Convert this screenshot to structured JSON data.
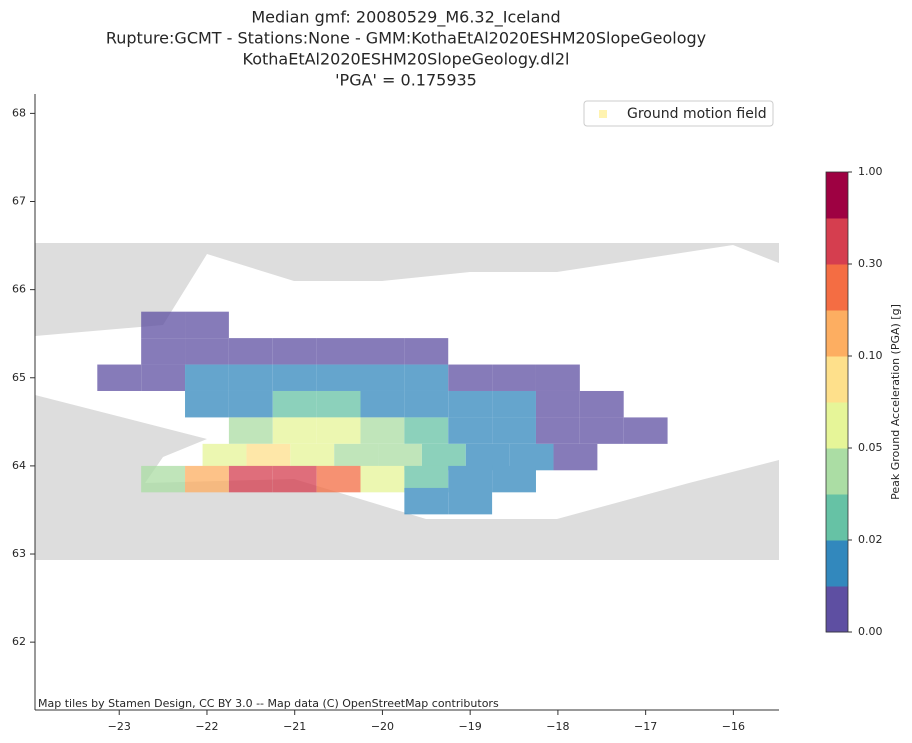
{
  "chart_data": {
    "type": "scatter",
    "title_lines": [
      "Median gmf: 20080529_M6.32_Iceland",
      "Rupture:GCMT -  Stations:None - GMM:KothaEtAl2020ESHM20SlopeGeology",
      "KothaEtAl2020ESHM20SlopeGeology.dl2l",
      "'PGA' = 0.175935"
    ],
    "attribution": "Map tiles by Stamen Design, CC BY 3.0 -- Map data (C) OpenStreetMap contributors",
    "legend_position": "upper right",
    "series": [
      {
        "name": "Ground motion field",
        "color": "#fff3b0",
        "x": [
          -22.5,
          -22.0,
          -22.5,
          -22.0,
          -21.5,
          -21.0,
          -20.5,
          -20.0,
          -19.5,
          -23.0,
          -22.5,
          -22.0,
          -21.5,
          -21.0,
          -20.5,
          -20.0,
          -19.5,
          -19.0,
          -18.5,
          -18.0,
          -22.0,
          -21.5,
          -21.0,
          -20.5,
          -20.0,
          -19.5,
          -19.0,
          -18.5,
          -18.0,
          -17.5,
          -21.5,
          -21.0,
          -20.5,
          -20.0,
          -19.5,
          -19.0,
          -18.5,
          -18.0,
          -17.5,
          -17.0,
          -21.8,
          -21.3,
          -20.8,
          -20.3,
          -19.8,
          -19.3,
          -18.8,
          -18.3,
          -17.8,
          -22.5,
          -22.0,
          -21.5,
          -21.0,
          -20.5,
          -20.0,
          -19.5,
          -19.0,
          -18.5,
          -19.5,
          -19.0
        ],
        "y": [
          65.6,
          65.6,
          65.3,
          65.3,
          65.3,
          65.3,
          65.3,
          65.3,
          65.3,
          65.0,
          65.0,
          65.0,
          65.0,
          65.0,
          65.0,
          65.0,
          65.0,
          65.0,
          65.0,
          65.0,
          64.7,
          64.7,
          64.7,
          64.7,
          64.7,
          64.7,
          64.7,
          64.7,
          64.7,
          64.7,
          64.4,
          64.4,
          64.4,
          64.4,
          64.4,
          64.4,
          64.4,
          64.4,
          64.4,
          64.4,
          64.1,
          64.1,
          64.1,
          64.1,
          64.1,
          64.1,
          64.1,
          64.1,
          64.1,
          63.85,
          63.85,
          63.85,
          63.85,
          63.85,
          63.85,
          63.85,
          63.85,
          63.85,
          63.6,
          63.6
        ],
        "values": [
          0.005,
          0.005,
          0.005,
          0.005,
          0.005,
          0.005,
          0.005,
          0.005,
          0.005,
          0.005,
          0.005,
          0.015,
          0.015,
          0.015,
          0.015,
          0.015,
          0.015,
          0.005,
          0.005,
          0.005,
          0.015,
          0.015,
          0.025,
          0.025,
          0.015,
          0.015,
          0.015,
          0.015,
          0.005,
          0.005,
          0.04,
          0.06,
          0.06,
          0.04,
          0.025,
          0.015,
          0.015,
          0.005,
          0.005,
          0.005,
          0.07,
          0.08,
          0.07,
          0.05,
          0.04,
          0.025,
          0.015,
          0.015,
          0.005,
          0.05,
          0.15,
          0.4,
          0.4,
          0.2,
          0.06,
          0.03,
          0.02,
          0.015,
          0.02,
          0.015
        ]
      }
    ],
    "xlim": [
      -23.96,
      -15.48
    ],
    "xticks": [
      {
        "value": -23,
        "label": "−23"
      },
      {
        "value": -22,
        "label": "−22"
      },
      {
        "value": -21,
        "label": "−21"
      },
      {
        "value": -20,
        "label": "−20"
      },
      {
        "value": -19,
        "label": "−19"
      },
      {
        "value": -18,
        "label": "−18"
      },
      {
        "value": -17,
        "label": "−17"
      },
      {
        "value": -16,
        "label": "−16"
      }
    ],
    "ylim": [
      61.23,
      68.22
    ],
    "yticks": [
      62,
      63,
      64,
      65,
      66,
      67,
      68
    ],
    "colorbar": {
      "label": "Peak Ground Acceleration (PGA) [g]",
      "ticks": [
        {
          "value": 0,
          "label": "0.00"
        },
        {
          "value": 0.02,
          "label": "0.02"
        },
        {
          "value": 0.05,
          "label": "0.05"
        },
        {
          "value": 0.1,
          "label": "0.10"
        },
        {
          "value": 0.3,
          "label": "0.30"
        },
        {
          "value": 1,
          "label": "1.00"
        }
      ],
      "colors": [
        "#5e4fa2",
        "#3288bd",
        "#66c2a5",
        "#abdda4",
        "#e6f598",
        "#fee08b",
        "#fdae61",
        "#f46d43",
        "#d53e4f",
        "#9e0142"
      ]
    }
  }
}
